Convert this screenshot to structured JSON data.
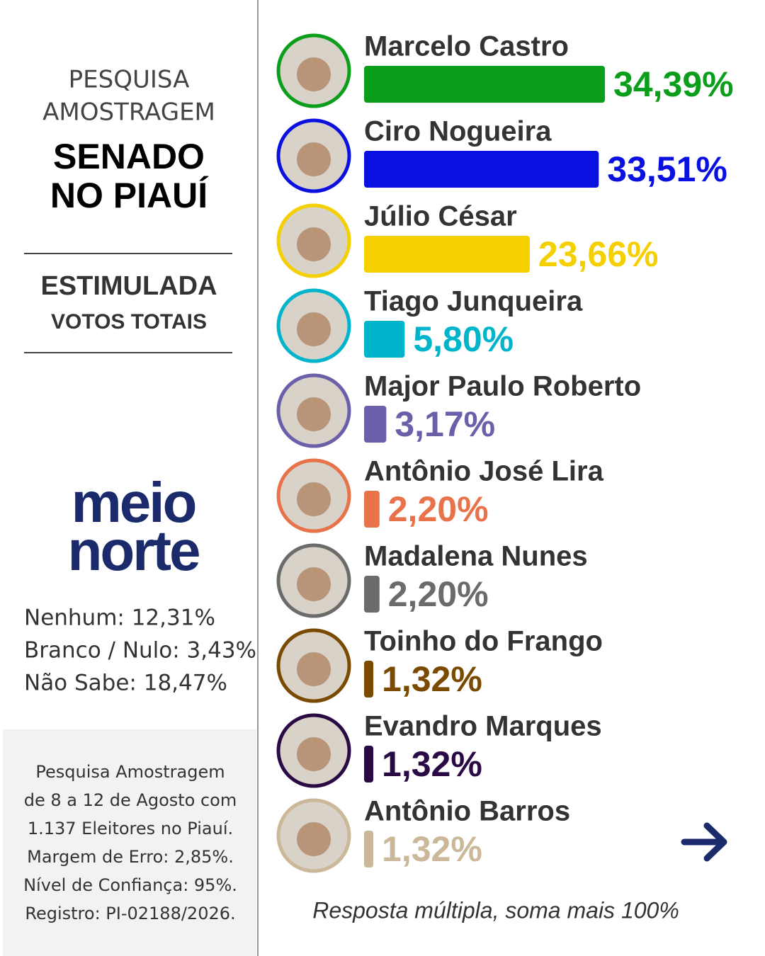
{
  "sidebar": {
    "kicker": [
      "PESQUISA",
      "AMOSTRAGEM"
    ],
    "headline": [
      "SENADO",
      "NO PIAUÍ"
    ],
    "method": "ESTIMULADA",
    "scope": "VOTOS TOTAIS",
    "logo": [
      "meio",
      "norte"
    ],
    "others": [
      "Nenhum: 12,31%",
      "Branco / Nulo: 3,43%",
      "Não Sabe:  18,47%"
    ],
    "details": [
      "Pesquisa Amostragem",
      "de 8 a 12 de Agosto com",
      "1.137 Eleitores no Piauí.",
      "Margem de Erro: 2,85%.",
      "Nível de Confiança: 95%.",
      "Registro: PI-02188/2026."
    ]
  },
  "chart_data": {
    "type": "bar",
    "orientation": "horizontal",
    "categories": [
      "Marcelo Castro",
      "Ciro Nogueira",
      "Júlio César",
      "Tiago Junqueira",
      "Major Paulo Roberto",
      "Antônio José Lira",
      "Madalena Nunes",
      "Toinho do Frango",
      "Evandro Marques",
      "Antônio Barros"
    ],
    "values": [
      34.39,
      33.51,
      23.66,
      5.8,
      3.17,
      2.2,
      2.2,
      1.32,
      1.32,
      1.32
    ],
    "value_labels": [
      "34,39%",
      "33,51%",
      "23,66%",
      "5,80%",
      "3,17%",
      "2,20%",
      "2,20%",
      "1,32%",
      "1,32%",
      "1,32%"
    ],
    "colors": [
      "#0a9e1a",
      "#0a10e0",
      "#f5d000",
      "#00b4cc",
      "#6a5fa8",
      "#e8734a",
      "#6b6b6b",
      "#7a4a00",
      "#2a0a45",
      "#cbb89a"
    ],
    "note": "Resposta múltipla, soma mais 100%"
  }
}
